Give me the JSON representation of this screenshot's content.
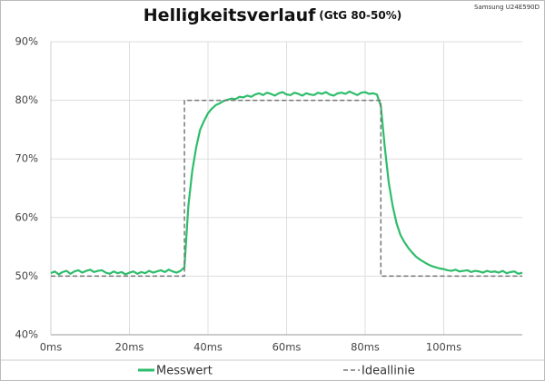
{
  "chart_data": {
    "type": "line",
    "title": "Helligkeitsverlauf",
    "subtitle": "(GtG 80-50%)",
    "annotation": "Samsung U24E590D",
    "xlim": [
      0,
      120
    ],
    "xticks": [
      {
        "value": 0,
        "label": "0ms"
      },
      {
        "value": 20,
        "label": "20ms"
      },
      {
        "value": 40,
        "label": "40ms"
      },
      {
        "value": 60,
        "label": "60ms"
      },
      {
        "value": 80,
        "label": "80ms"
      },
      {
        "value": 100,
        "label": "100ms"
      }
    ],
    "ylim": [
      40,
      90
    ],
    "yticks": [
      {
        "value": 40,
        "label": "40%"
      },
      {
        "value": 50,
        "label": "50%"
      },
      {
        "value": 60,
        "label": "60%"
      },
      {
        "value": 70,
        "label": "70%"
      },
      {
        "value": 80,
        "label": "80%"
      },
      {
        "value": 90,
        "label": "90%"
      }
    ],
    "grid": true,
    "legend": "bottom",
    "series": [
      {
        "name": "Messwert",
        "color": "#2ebd6b",
        "dash": false,
        "x": [
          0,
          1,
          2,
          3,
          4,
          5,
          6,
          7,
          8,
          9,
          10,
          11,
          12,
          13,
          14,
          15,
          16,
          17,
          18,
          19,
          20,
          21,
          22,
          23,
          24,
          25,
          26,
          27,
          28,
          29,
          30,
          31,
          32,
          33,
          34,
          35,
          36,
          37,
          38,
          39,
          40,
          41,
          42,
          43,
          44,
          45,
          46,
          47,
          48,
          49,
          50,
          51,
          52,
          53,
          54,
          55,
          56,
          57,
          58,
          59,
          60,
          61,
          62,
          63,
          64,
          65,
          66,
          67,
          68,
          69,
          70,
          71,
          72,
          73,
          74,
          75,
          76,
          77,
          78,
          79,
          80,
          81,
          82,
          83,
          84,
          85,
          86,
          87,
          88,
          89,
          90,
          91,
          92,
          93,
          94,
          95,
          96,
          97,
          98,
          99,
          100,
          101,
          102,
          103,
          104,
          105,
          106,
          107,
          108,
          109,
          110,
          111,
          112,
          113,
          114,
          115,
          116,
          117,
          118,
          119,
          120
        ],
        "values": [
          50.5,
          50.8,
          50.3,
          50.7,
          50.9,
          50.4,
          50.8,
          51.0,
          50.6,
          50.9,
          51.1,
          50.7,
          50.9,
          51.0,
          50.6,
          50.4,
          50.8,
          50.5,
          50.7,
          50.3,
          50.6,
          50.8,
          50.4,
          50.7,
          50.5,
          50.9,
          50.6,
          50.8,
          51.0,
          50.7,
          51.1,
          50.8,
          50.6,
          50.9,
          51.5,
          62,
          68,
          72,
          75,
          76.5,
          77.8,
          78.6,
          79.2,
          79.5,
          79.9,
          80.1,
          80.3,
          80.2,
          80.6,
          80.5,
          80.8,
          80.6,
          81.0,
          81.2,
          80.9,
          81.3,
          81.1,
          80.8,
          81.2,
          81.4,
          81.0,
          80.9,
          81.3,
          81.1,
          80.8,
          81.2,
          81.0,
          80.9,
          81.3,
          81.1,
          81.4,
          81.0,
          80.8,
          81.2,
          81.3,
          81.1,
          81.5,
          81.2,
          80.9,
          81.3,
          81.4,
          81.1,
          81.2,
          81.0,
          79,
          72,
          66,
          62,
          59,
          57,
          55.8,
          54.8,
          54,
          53.3,
          52.8,
          52.4,
          52,
          51.7,
          51.5,
          51.3,
          51.2,
          51.0,
          50.9,
          51.1,
          50.8,
          50.9,
          51.0,
          50.7,
          50.9,
          50.8,
          50.6,
          50.9,
          50.7,
          50.8,
          50.6,
          50.9,
          50.5,
          50.7,
          50.8,
          50.4,
          50.6
        ]
      },
      {
        "name": "Ideallinie",
        "color": "#777777",
        "dash": true,
        "x": [
          0,
          34,
          34,
          84,
          84,
          120
        ],
        "values": [
          50,
          50,
          80,
          80,
          50,
          50
        ]
      }
    ]
  }
}
